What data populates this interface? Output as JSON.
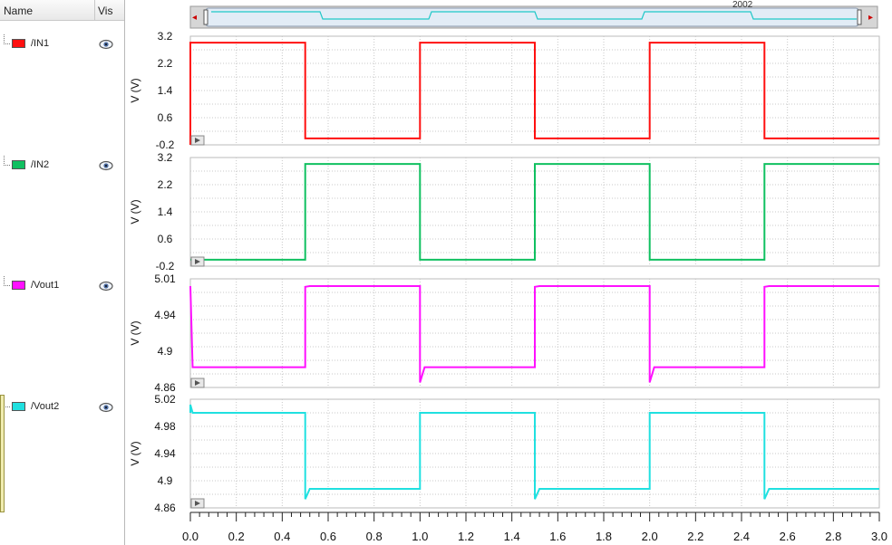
{
  "panel": {
    "col_name": "Name",
    "col_vis": "Vis",
    "signals": [
      {
        "label": "/IN1",
        "color": "#ff1010",
        "icon": "eye-icon"
      },
      {
        "label": "/IN2",
        "color": "#10c060",
        "icon": "eye-icon"
      },
      {
        "label": "/Vout1",
        "color": "#ff10ff",
        "icon": "eye-icon"
      },
      {
        "label": "/Vout2",
        "color": "#20e0e0",
        "icon": "eye-icon"
      }
    ]
  },
  "scroller": {
    "left_arrow": "◂",
    "right_arrow": "▸",
    "partial_text": "2002"
  },
  "chart_data": {
    "type": "line",
    "x_ticks": [
      "0.0",
      "0.2",
      "0.4",
      "0.6",
      "0.8",
      "1.0",
      "1.2",
      "1.4",
      "1.6",
      "1.8",
      "2.0",
      "2.2",
      "2.4",
      "2.6",
      "2.8",
      "3.0"
    ],
    "xlim": [
      0,
      3.0
    ],
    "grid": true,
    "strips": [
      {
        "name": "/IN1",
        "color": "#ff1010",
        "ylabel": "V (V)",
        "ylim": [
          -0.2,
          3.2
        ],
        "y_ticks": [
          "3.2",
          "2.2",
          "1.4",
          "0.6",
          "-0.2"
        ],
        "x": [
          0.0,
          0.0,
          0.5,
          0.5,
          1.0,
          1.0,
          1.5,
          1.5,
          2.0,
          2.0,
          2.5,
          2.5,
          3.0
        ],
        "y": [
          -0.2,
          3.0,
          3.0,
          0.0,
          0.0,
          3.0,
          3.0,
          0.0,
          0.0,
          3.0,
          3.0,
          0.0,
          0.0
        ]
      },
      {
        "name": "/IN2",
        "color": "#10c060",
        "ylabel": "V (V)",
        "ylim": [
          -0.2,
          3.2
        ],
        "y_ticks": [
          "3.2",
          "2.2",
          "1.4",
          "0.6",
          "-0.2"
        ],
        "x": [
          0.0,
          0.5,
          0.5,
          1.0,
          1.0,
          1.5,
          1.5,
          2.0,
          2.0,
          2.5,
          2.5,
          3.0
        ],
        "y": [
          0.0,
          0.0,
          3.0,
          3.0,
          0.0,
          0.0,
          3.0,
          3.0,
          0.0,
          0.0,
          3.0,
          3.0
        ]
      },
      {
        "name": "/Vout1",
        "color": "#ff10ff",
        "ylabel": "V (V)",
        "ylim": [
          4.86,
          5.01
        ],
        "y_ticks": [
          "5.01",
          "4.94",
          "4.9",
          "4.86"
        ],
        "x": [
          0.0,
          0.01,
          0.5,
          0.5,
          0.52,
          1.0,
          1.0,
          1.02,
          1.5,
          1.5,
          1.52,
          2.0,
          2.0,
          2.02,
          2.5,
          2.5,
          2.52,
          3.0
        ],
        "y": [
          5.0,
          4.888,
          4.888,
          4.999,
          5.0,
          5.0,
          4.867,
          4.888,
          4.888,
          4.999,
          5.0,
          5.0,
          4.867,
          4.888,
          4.888,
          4.999,
          5.0,
          5.0
        ]
      },
      {
        "name": "/Vout2",
        "color": "#20e0e0",
        "ylabel": "V (V)",
        "ylim": [
          4.86,
          5.02
        ],
        "y_ticks": [
          "5.02",
          "4.98",
          "4.94",
          "4.9",
          "4.86"
        ],
        "x": [
          0.0,
          0.0,
          0.01,
          0.5,
          0.5,
          0.52,
          1.0,
          1.0,
          1.02,
          1.5,
          1.5,
          1.52,
          2.0,
          2.0,
          2.02,
          2.5,
          2.5,
          2.52,
          3.0
        ],
        "y": [
          5.0,
          5.012,
          5.0,
          5.0,
          4.873,
          4.888,
          4.888,
          5.0,
          5.0,
          5.0,
          4.873,
          4.888,
          4.888,
          5.0,
          5.0,
          5.0,
          4.873,
          4.888,
          4.888
        ]
      }
    ]
  }
}
